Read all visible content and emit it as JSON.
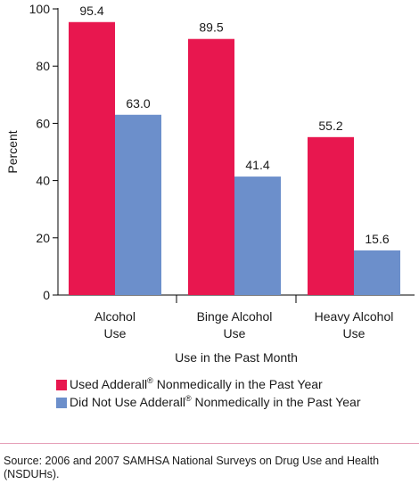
{
  "chart_data": {
    "type": "bar",
    "categories": [
      [
        "Alcohol",
        "Use"
      ],
      [
        "Binge Alcohol",
        "Use"
      ],
      [
        "Heavy Alcohol",
        "Use"
      ]
    ],
    "series": [
      {
        "name_parts": [
          "Used Adderall",
          "®",
          " Nonmedically in the Past Year"
        ],
        "color": "#e8174f",
        "values": [
          95.4,
          89.5,
          55.2
        ],
        "labels": [
          "95.4",
          "89.5",
          "55.2"
        ]
      },
      {
        "name_parts": [
          "Did Not Use Adderall",
          "®",
          " Nonmedically in the Past Year"
        ],
        "color": "#6c8fcb",
        "values": [
          63.0,
          41.4,
          15.6
        ],
        "labels": [
          "63.0",
          "41.4",
          "15.6"
        ]
      }
    ],
    "xlabel": "Use in the Past Month",
    "ylabel": "Percent",
    "ylim": [
      0,
      100
    ],
    "yticks": [
      0,
      20,
      40,
      60,
      80,
      100
    ],
    "grid": false,
    "legend_position": "bottom"
  },
  "source": "Source: 2006 and 2007 SAMHSA National Surveys on Drug Use and Health (NSDUHs)."
}
